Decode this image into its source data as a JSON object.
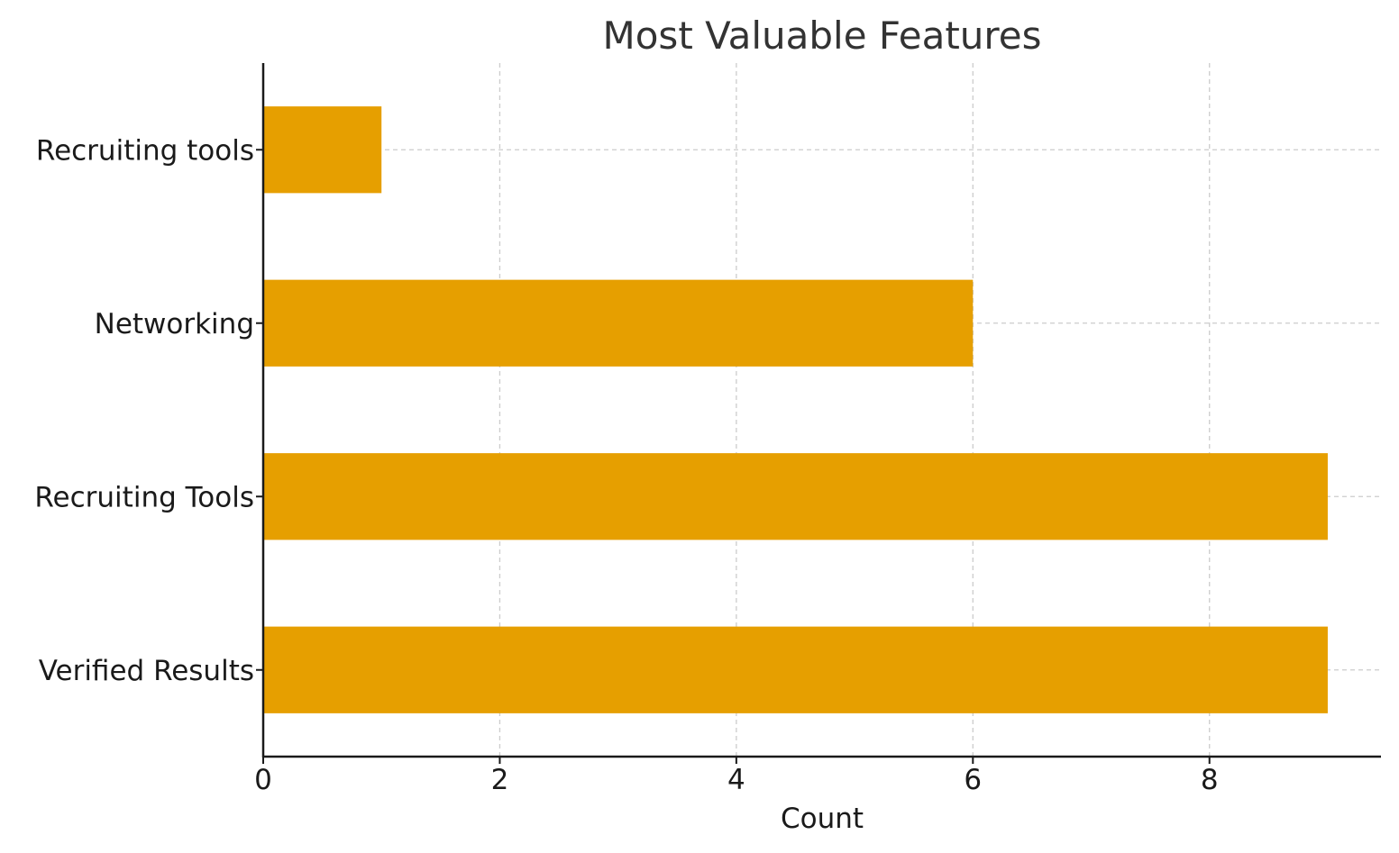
{
  "chart_data": {
    "type": "bar",
    "orientation": "horizontal",
    "title": "Most Valuable Features",
    "xlabel": "Count",
    "ylabel": "",
    "categories": [
      "Verified Results",
      "Recruiting Tools",
      "Networking",
      "Recruiting tools"
    ],
    "values": [
      9,
      9,
      6,
      1
    ],
    "xlim": [
      0,
      9.45
    ],
    "xticks": [
      0,
      2,
      4,
      6,
      8
    ],
    "grid": true,
    "bar_color": "#E69F00"
  }
}
